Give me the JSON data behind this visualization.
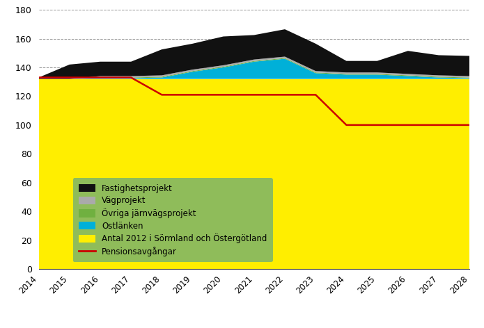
{
  "years": [
    2014,
    2015,
    2016,
    2017,
    2018,
    2019,
    2020,
    2021,
    2022,
    2023,
    2024,
    2025,
    2026,
    2027,
    2028
  ],
  "antal_2012": [
    132,
    132,
    132,
    132,
    132,
    132,
    132,
    132,
    132,
    132,
    132,
    132,
    132,
    132,
    132
  ],
  "ostlanken": [
    0,
    0,
    0.5,
    0.5,
    1,
    5,
    8,
    12,
    14,
    4,
    3,
    3,
    2,
    1,
    0.5
  ],
  "ovriga_jvg": [
    0,
    0,
    0.5,
    0.5,
    0.5,
    0.5,
    0.5,
    0.5,
    0.5,
    0.5,
    0.5,
    0.5,
    0.5,
    0.5,
    0.5
  ],
  "vagprojekt": [
    0,
    0,
    1,
    1,
    1,
    1,
    1,
    1,
    1,
    1,
    1,
    1,
    1,
    1,
    1
  ],
  "fastighetsprojekt": [
    1,
    10,
    10,
    10,
    18,
    18,
    20,
    17,
    19,
    19,
    8,
    8,
    16,
    14,
    14
  ],
  "pensionsavgangar": [
    133,
    133,
    133,
    133,
    121,
    121,
    121,
    121,
    121,
    121,
    100,
    100,
    100,
    100,
    100
  ],
  "colors": {
    "fastighetsprojekt": "#111111",
    "vagprojekt": "#aaaaaa",
    "ovriga_jvg": "#70b040",
    "ostlanken": "#00b0d8",
    "antal_2012": "#ffee00",
    "pensionsavgangar": "#cc0000"
  },
  "legend_bg": "#8fbc5a",
  "ylim": [
    0,
    180
  ],
  "yticks": [
    0,
    20,
    40,
    60,
    80,
    100,
    120,
    140,
    160,
    180
  ],
  "figsize": [
    6.95,
    4.72
  ],
  "dpi": 100
}
